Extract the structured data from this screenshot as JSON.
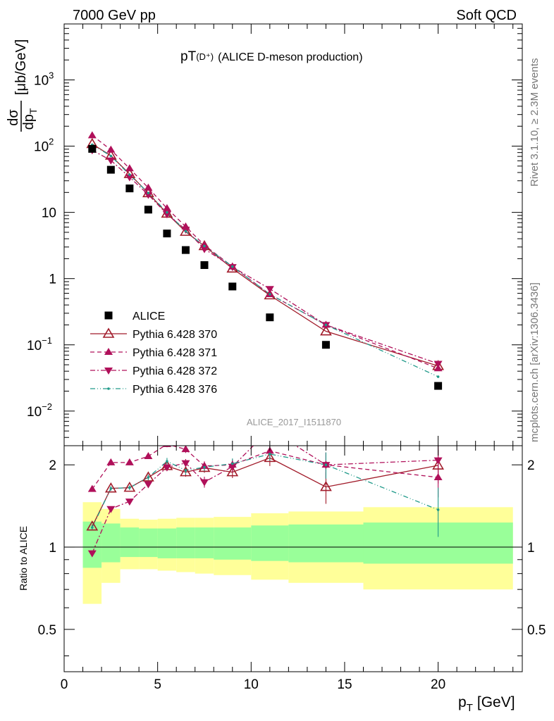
{
  "header": {
    "left": "7000 GeV pp",
    "right": "Soft QCD"
  },
  "title": {
    "main": "pT",
    "sup": "(D⁺)",
    "rest": "(ALICE D-meson production)"
  },
  "side_right_top": "Rivet 3.1.10, ≥ 2.3M events",
  "side_right_bottom": "mcplots.cern.ch [arXiv:1306.3436]",
  "analysis_id": "ALICE_2017_I1511870",
  "ylabel_main": {
    "num": "dσ",
    "den": "dp",
    "den_sub": "T",
    "unit": "[μb/GeV]"
  },
  "ylabel_ratio": "Ratio to ALICE",
  "xlabel": {
    "main": "p",
    "sub": "T",
    "unit": "[GeV]"
  },
  "colors": {
    "alice": "#000000",
    "p370": "#a11b2a",
    "p371": "#b0105a",
    "p372": "#b0105a",
    "p376": "#209a8a",
    "band_inner": "#99ff99",
    "band_outer": "#ffff99"
  },
  "chart_data": [
    {
      "type": "scatter",
      "name": "main",
      "xlim": [
        0,
        24.5
      ],
      "ylim": [
        0.003,
        7000
      ],
      "yscale": "log",
      "xticks": [
        0,
        5,
        10,
        15,
        20
      ],
      "yticks": [
        {
          "v": 0.01,
          "base": "10",
          "exp": "−2"
        },
        {
          "v": 0.1,
          "base": "10",
          "exp": "−1"
        },
        {
          "v": 1,
          "base": "1",
          "exp": ""
        },
        {
          "v": 10,
          "base": "10",
          "exp": ""
        },
        {
          "v": 100,
          "base": "10",
          "exp": "2"
        },
        {
          "v": 1000,
          "base": "10",
          "exp": "3"
        }
      ],
      "x": [
        1.5,
        2.5,
        3.5,
        4.5,
        5.5,
        6.5,
        7.5,
        9,
        11,
        14,
        20
      ],
      "alice": [
        91,
        44,
        23,
        11,
        4.8,
        2.7,
        1.6,
        0.76,
        0.26,
        0.1,
        0.024
      ],
      "series": [
        {
          "name": "Pythia 6.428 370",
          "key": "p370",
          "values": [
            108,
            72,
            38,
            19.5,
            9.6,
            5.1,
            3.1,
            1.42,
            0.56,
            0.16,
            0.048
          ]
        },
        {
          "name": "Pythia 6.428 371",
          "key": "p371",
          "values": [
            145,
            88,
            46,
            23.5,
            11.5,
            6.1,
            3.2,
            1.52,
            0.58,
            0.2,
            0.044
          ]
        },
        {
          "name": "Pythia 6.428 372",
          "key": "p372",
          "values": [
            87,
            61,
            34,
            18.5,
            9.4,
            5.5,
            2.8,
            1.5,
            0.7,
            0.2,
            0.052
          ]
        },
        {
          "name": "Pythia 6.428 376",
          "key": "p376",
          "values": [
            105,
            71,
            37,
            19.6,
            10.0,
            5.2,
            3.1,
            1.52,
            0.58,
            0.2,
            0.033
          ]
        }
      ],
      "legend": [
        {
          "label": "ALICE",
          "key": "alice"
        },
        {
          "label": "Pythia 6.428 370",
          "key": "p370"
        },
        {
          "label": "Pythia 6.428 371",
          "key": "p371"
        },
        {
          "label": "Pythia 6.428 372",
          "key": "p372"
        },
        {
          "label": "Pythia 6.428 376",
          "key": "p376"
        }
      ],
      "legend_position": "bottom-left"
    },
    {
      "type": "line",
      "name": "ratio",
      "xlim": [
        0,
        24.5
      ],
      "ylim": [
        0.35,
        2.35
      ],
      "yscale": "log",
      "yticks": [
        0.5,
        1,
        2
      ],
      "x": [
        1.5,
        2.5,
        3.5,
        4.5,
        5.5,
        6.5,
        7.5,
        9,
        11,
        14,
        20
      ],
      "series": [
        {
          "name": "Pythia 6.428 370",
          "key": "p370",
          "values": [
            1.19,
            1.64,
            1.65,
            1.8,
            1.98,
            1.88,
            1.95,
            1.88,
            2.12,
            1.66,
            1.99
          ],
          "err": [
            0.02,
            0.03,
            0.03,
            0.04,
            0.06,
            0.07,
            0.08,
            0.09,
            0.14,
            0.22,
            0.28
          ]
        },
        {
          "name": "Pythia 6.428 371",
          "key": "p371",
          "values": [
            1.63,
            2.04,
            2.04,
            2.15,
            2.38,
            2.28,
            1.98,
            2.0,
            2.25,
            2.0,
            1.8
          ],
          "err": [
            0.02,
            0.03,
            0.03,
            0.04,
            0.06,
            0.07,
            0.08,
            0.09,
            0.14,
            0.22,
            0.28
          ]
        },
        {
          "name": "Pythia 6.428 372",
          "key": "p372",
          "values": [
            0.95,
            1.38,
            1.47,
            1.7,
            1.96,
            2.03,
            1.73,
            1.97,
            2.7,
            2.0,
            2.08
          ],
          "err": [
            0.02,
            0.03,
            0.03,
            0.04,
            0.06,
            0.07,
            0.08,
            0.09,
            0.14,
            0.22,
            0.28
          ]
        },
        {
          "name": "Pythia 6.428 376",
          "key": "p376",
          "values": [
            1.18,
            1.64,
            1.65,
            1.8,
            2.06,
            1.91,
            1.96,
            2.02,
            2.19,
            2.0,
            1.37
          ],
          "err": [
            0.02,
            0.03,
            0.03,
            0.04,
            0.06,
            0.07,
            0.08,
            0.09,
            0.14,
            0.22,
            0.28
          ]
        }
      ],
      "bands": [
        {
          "x0": 1,
          "x1": 2,
          "inner": [
            0.84,
            1.24
          ],
          "outer": [
            0.62,
            1.46
          ]
        },
        {
          "x0": 2,
          "x1": 3,
          "inner": [
            0.88,
            1.22
          ],
          "outer": [
            0.74,
            1.38
          ]
        },
        {
          "x0": 3,
          "x1": 4,
          "inner": [
            0.92,
            1.18
          ],
          "outer": [
            0.83,
            1.27
          ]
        },
        {
          "x0": 4,
          "x1": 5,
          "inner": [
            0.92,
            1.17
          ],
          "outer": [
            0.83,
            1.26
          ]
        },
        {
          "x0": 5,
          "x1": 6,
          "inner": [
            0.91,
            1.17
          ],
          "outer": [
            0.82,
            1.27
          ]
        },
        {
          "x0": 6,
          "x1": 7,
          "inner": [
            0.91,
            1.18
          ],
          "outer": [
            0.81,
            1.28
          ]
        },
        {
          "x0": 7,
          "x1": 8,
          "inner": [
            0.91,
            1.18
          ],
          "outer": [
            0.8,
            1.28
          ]
        },
        {
          "x0": 8,
          "x1": 10,
          "inner": [
            0.9,
            1.18
          ],
          "outer": [
            0.79,
            1.29
          ]
        },
        {
          "x0": 10,
          "x1": 12,
          "inner": [
            0.89,
            1.2
          ],
          "outer": [
            0.76,
            1.33
          ]
        },
        {
          "x0": 12,
          "x1": 16,
          "inner": [
            0.88,
            1.21
          ],
          "outer": [
            0.74,
            1.35
          ]
        },
        {
          "x0": 16,
          "x1": 24,
          "inner": [
            0.87,
            1.23
          ],
          "outer": [
            0.7,
            1.4
          ]
        }
      ]
    }
  ]
}
